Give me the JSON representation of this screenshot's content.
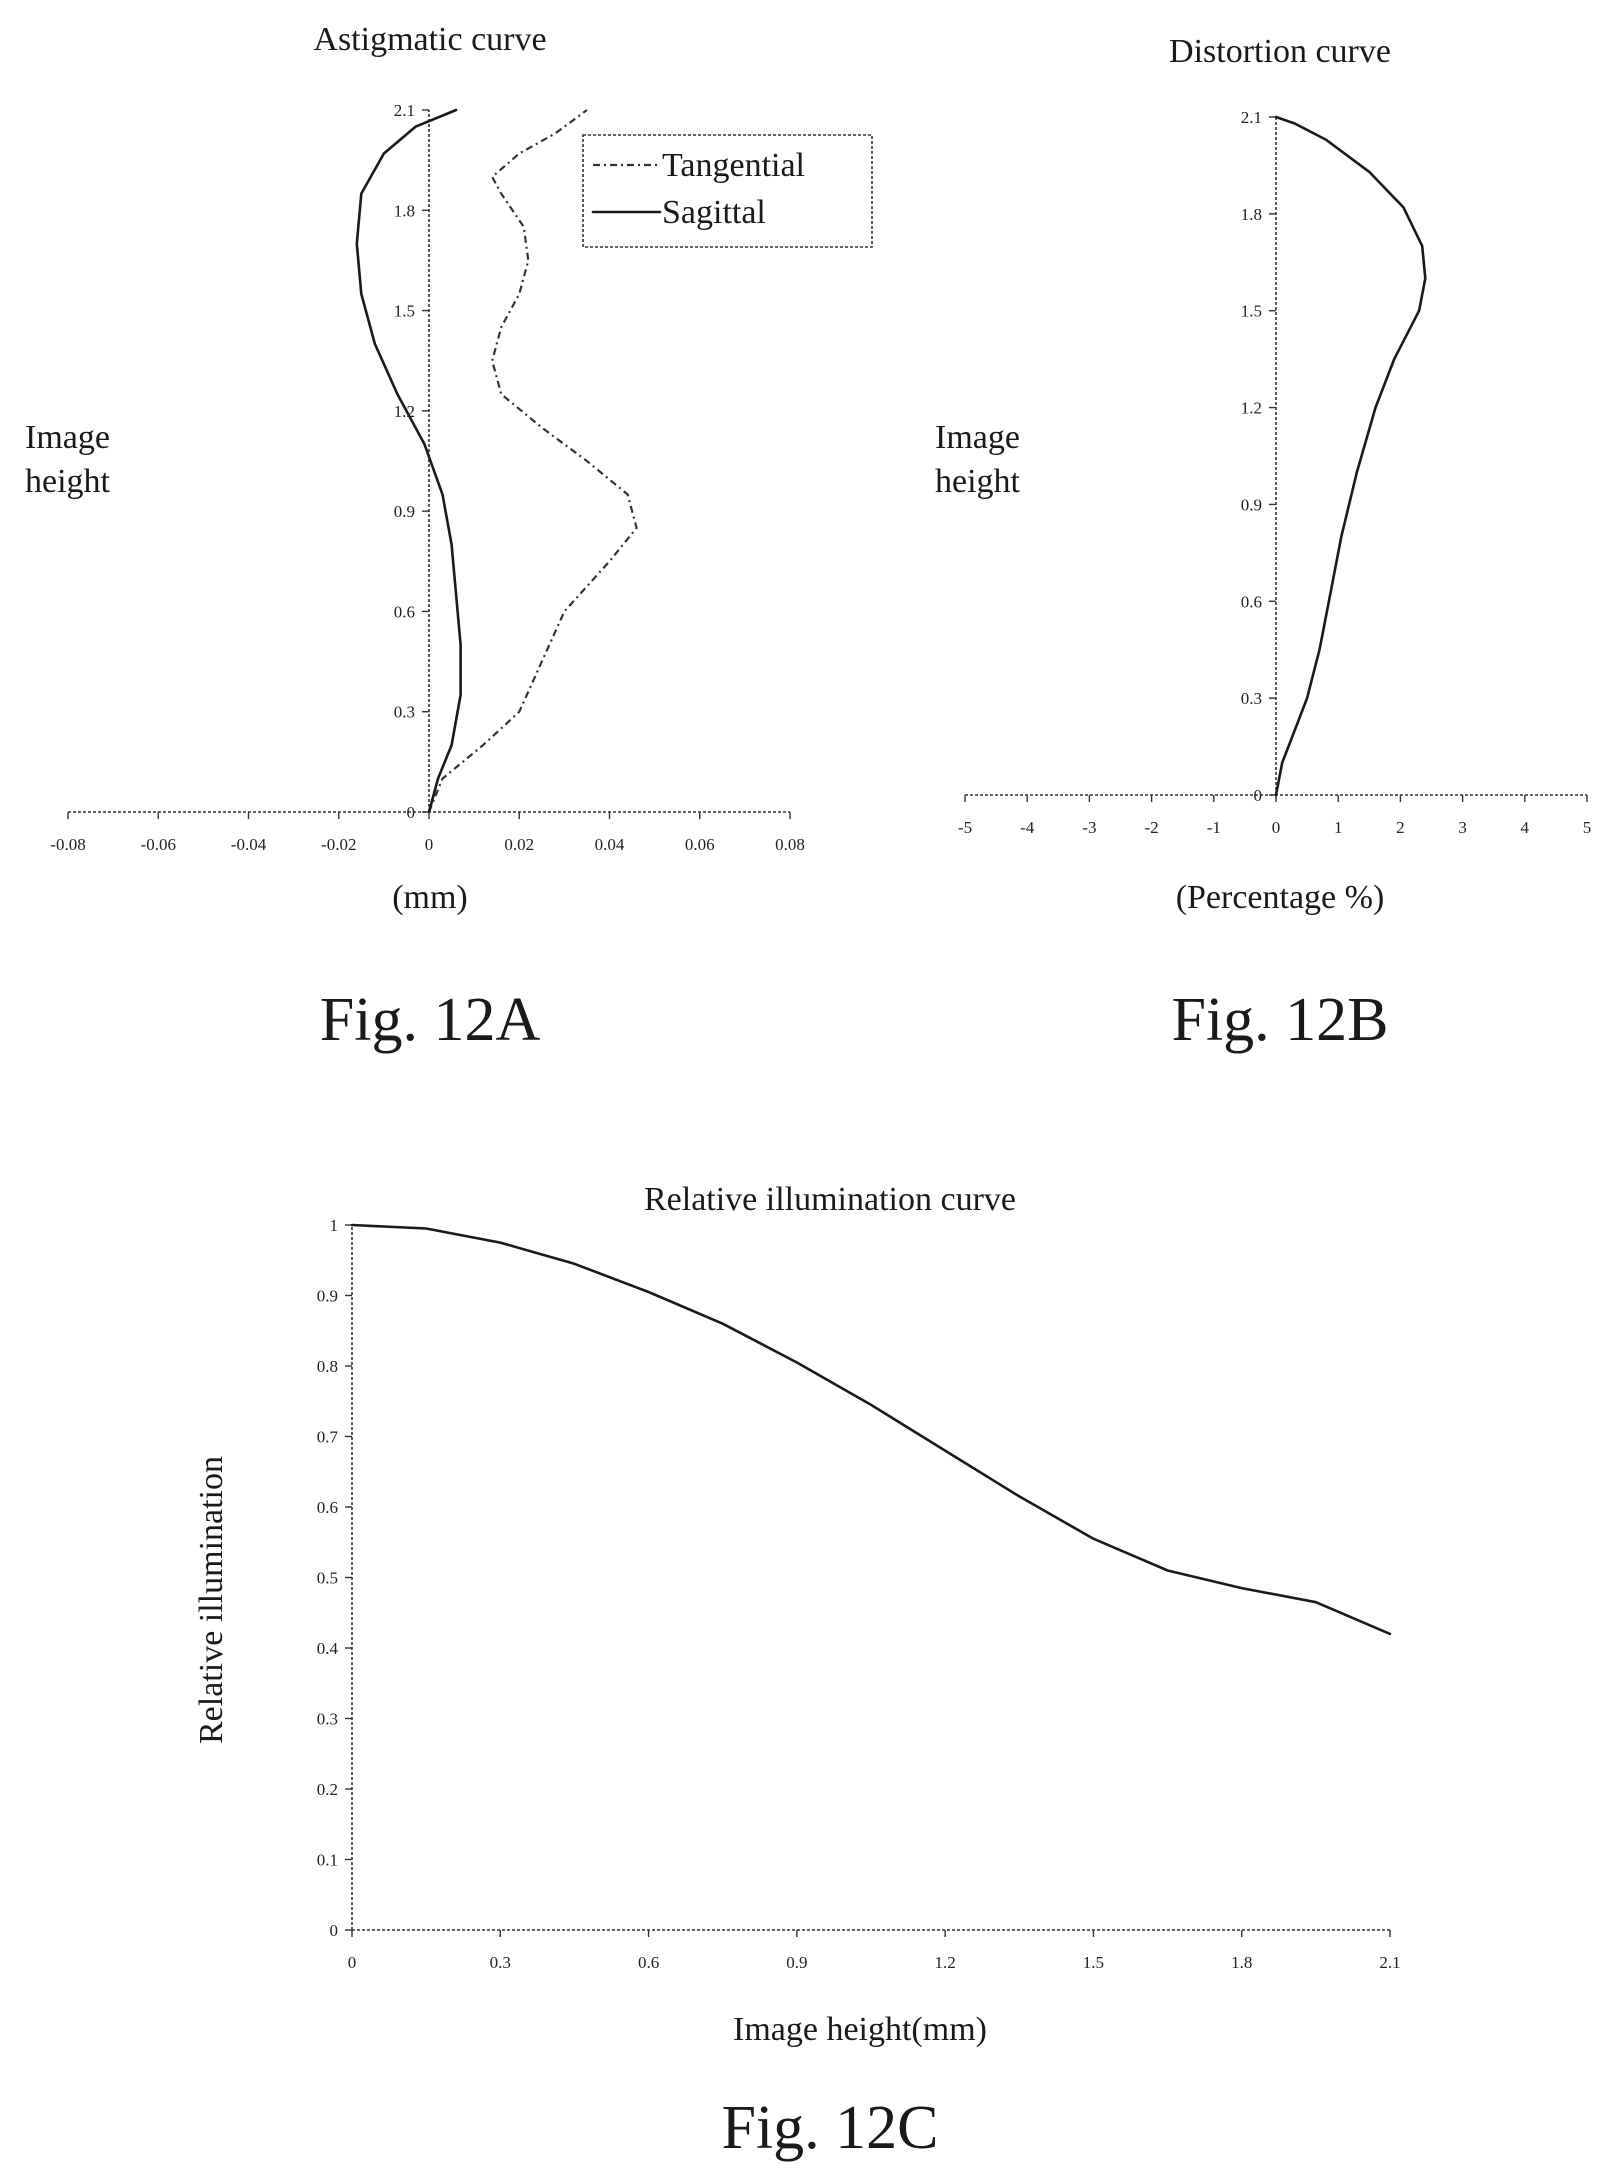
{
  "figures": [
    {
      "id": "12A",
      "caption": "Fig. 12A"
    },
    {
      "id": "12B",
      "caption": "Fig. 12B"
    },
    {
      "id": "12C",
      "caption": "Fig. 12C"
    }
  ],
  "chart_data": [
    {
      "type": "line",
      "title": "Astigmatic curve",
      "xlabel": "(mm)",
      "ylabel": "Image height",
      "xlim": [
        -0.08,
        0.08
      ],
      "ylim": [
        0,
        2.1
      ],
      "xticks": [
        "-0.08",
        "-0.06",
        "-0.04",
        "-0.02",
        "0",
        "0.02",
        "0.04",
        "0.06",
        "0.08"
      ],
      "yticks": [
        "0",
        "0.3",
        "0.6",
        "0.9",
        "1.2",
        "1.5",
        "1.8",
        "2.1"
      ],
      "legend_position": "top-right",
      "grid": false,
      "series": [
        {
          "name": "Tangential",
          "style": "dash-dot",
          "points": [
            [
              0,
              0
            ],
            [
              0.003,
              0.1
            ],
            [
              0.012,
              0.2
            ],
            [
              0.02,
              0.3
            ],
            [
              0.025,
              0.45
            ],
            [
              0.03,
              0.6
            ],
            [
              0.04,
              0.75
            ],
            [
              0.046,
              0.85
            ],
            [
              0.044,
              0.95
            ],
            [
              0.035,
              1.05
            ],
            [
              0.025,
              1.15
            ],
            [
              0.016,
              1.25
            ],
            [
              0.014,
              1.35
            ],
            [
              0.016,
              1.45
            ],
            [
              0.02,
              1.55
            ],
            [
              0.022,
              1.65
            ],
            [
              0.021,
              1.75
            ],
            [
              0.016,
              1.85
            ],
            [
              0.014,
              1.9
            ],
            [
              0.02,
              1.97
            ],
            [
              0.028,
              2.03
            ],
            [
              0.035,
              2.1
            ]
          ]
        },
        {
          "name": "Sagittal",
          "style": "solid",
          "points": [
            [
              0,
              0
            ],
            [
              0.002,
              0.1
            ],
            [
              0.005,
              0.2
            ],
            [
              0.007,
              0.35
            ],
            [
              0.007,
              0.5
            ],
            [
              0.006,
              0.65
            ],
            [
              0.005,
              0.8
            ],
            [
              0.003,
              0.95
            ],
            [
              -0.001,
              1.1
            ],
            [
              -0.007,
              1.25
            ],
            [
              -0.012,
              1.4
            ],
            [
              -0.015,
              1.55
            ],
            [
              -0.016,
              1.7
            ],
            [
              -0.015,
              1.85
            ],
            [
              -0.01,
              1.97
            ],
            [
              -0.003,
              2.05
            ],
            [
              0.006,
              2.1
            ]
          ]
        }
      ]
    },
    {
      "type": "line",
      "title": "Distortion curve",
      "xlabel": "(Percentage %)",
      "ylabel": "Image height",
      "xlim": [
        -5,
        5
      ],
      "ylim": [
        0,
        2.1
      ],
      "xticks": [
        "-5",
        "-4",
        "-3",
        "-2",
        "-1",
        "0",
        "1",
        "2",
        "3",
        "4",
        "5"
      ],
      "yticks": [
        "0",
        "0.3",
        "0.6",
        "0.9",
        "1.2",
        "1.5",
        "1.8",
        "2.1"
      ],
      "grid": false,
      "series": [
        {
          "style": "solid",
          "points": [
            [
              0,
              0
            ],
            [
              0.1,
              0.1
            ],
            [
              0.3,
              0.2
            ],
            [
              0.5,
              0.3
            ],
            [
              0.7,
              0.45
            ],
            [
              0.85,
              0.6
            ],
            [
              1.05,
              0.8
            ],
            [
              1.3,
              1.0
            ],
            [
              1.6,
              1.2
            ],
            [
              1.9,
              1.35
            ],
            [
              2.3,
              1.5
            ],
            [
              2.4,
              1.6
            ],
            [
              2.35,
              1.7
            ],
            [
              2.05,
              1.82
            ],
            [
              1.5,
              1.93
            ],
            [
              0.8,
              2.03
            ],
            [
              0.3,
              2.08
            ],
            [
              0,
              2.1
            ]
          ]
        }
      ]
    },
    {
      "type": "line",
      "title": "Relative illumination curve",
      "xlabel": "Image height(mm)",
      "ylabel": "Relative illumination",
      "xlim": [
        0,
        2.1
      ],
      "ylim": [
        0,
        1
      ],
      "xticks": [
        "0",
        "0.3",
        "0.6",
        "0.9",
        "1.2",
        "1.5",
        "1.8",
        "2.1"
      ],
      "yticks": [
        "0",
        "0.1",
        "0.2",
        "0.3",
        "0.4",
        "0.5",
        "0.6",
        "0.7",
        "0.8",
        "0.9",
        "1"
      ],
      "grid": false,
      "series": [
        {
          "style": "solid",
          "points": [
            [
              0,
              1.0
            ],
            [
              0.15,
              0.995
            ],
            [
              0.3,
              0.975
            ],
            [
              0.45,
              0.945
            ],
            [
              0.6,
              0.905
            ],
            [
              0.75,
              0.86
            ],
            [
              0.9,
              0.805
            ],
            [
              1.05,
              0.745
            ],
            [
              1.2,
              0.68
            ],
            [
              1.35,
              0.615
            ],
            [
              1.5,
              0.555
            ],
            [
              1.65,
              0.51
            ],
            [
              1.8,
              0.485
            ],
            [
              1.95,
              0.465
            ],
            [
              2.1,
              0.42
            ]
          ]
        }
      ]
    }
  ]
}
